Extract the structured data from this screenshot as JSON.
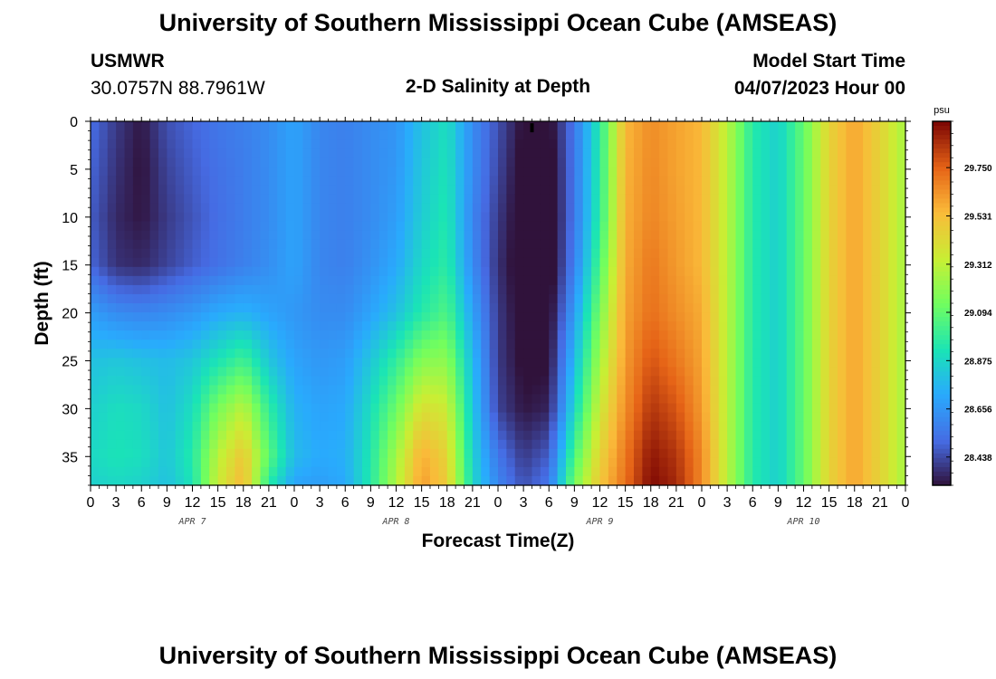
{
  "header": {
    "title": "University of Southern Mississippi Ocean Cube (AMSEAS)",
    "station_id": "USMWR",
    "coords": "30.0757N  88.7961W",
    "plot_title": "2-D Salinity at Depth",
    "start_label": "Model Start Time",
    "start_value": "04/07/2023 Hour 00"
  },
  "footer": {
    "title": "University of Southern Mississippi Ocean Cube (AMSEAS)"
  },
  "chart_data": {
    "type": "heatmap",
    "xlabel": "Forecast Time(Z)",
    "ylabel": "Depth (ft)",
    "x_tick_labels": [
      "0",
      "3",
      "6",
      "9",
      "12",
      "15",
      "18",
      "21",
      "0",
      "3",
      "6",
      "9",
      "12",
      "15",
      "18",
      "21",
      "0",
      "3",
      "6",
      "9",
      "12",
      "15",
      "18",
      "21",
      "0",
      "3",
      "6",
      "9",
      "12",
      "15",
      "18",
      "21",
      "0"
    ],
    "x_range_hours": [
      0,
      96
    ],
    "date_labels": [
      {
        "label": "APR 7",
        "hour": 12
      },
      {
        "label": "APR 8",
        "hour": 36
      },
      {
        "label": "APR 9",
        "hour": 60
      },
      {
        "label": "APR 10",
        "hour": 84
      }
    ],
    "y_ticks": [
      0,
      5,
      10,
      15,
      20,
      25,
      30,
      35
    ],
    "y_range_ft": [
      0,
      38
    ],
    "y_inverted": true,
    "colorbar": {
      "unit": "psu",
      "ticks": [
        "29.750",
        "29.531",
        "29.312",
        "29.094",
        "28.875",
        "28.656",
        "28.438"
      ],
      "range": [
        28.31,
        29.96
      ],
      "colormap": "turbo"
    },
    "marker": {
      "hour": 52,
      "depth_ft": 1
    },
    "sample_grid": {
      "hours": [
        0,
        3,
        6,
        9,
        12,
        15,
        18,
        21,
        24,
        27,
        30,
        33,
        36,
        39,
        42,
        45,
        48,
        51,
        54,
        57,
        60,
        63,
        66,
        69,
        72,
        75,
        78,
        81,
        84,
        87,
        90,
        93,
        96
      ],
      "depths_ft": [
        0,
        5,
        10,
        15,
        20,
        25,
        30,
        35,
        38
      ],
      "values": [
        [
          28.52,
          28.4,
          28.32,
          28.45,
          28.5,
          28.55,
          28.58,
          28.62,
          28.7,
          28.6,
          28.58,
          28.62,
          28.65,
          28.8,
          28.9,
          28.62,
          28.45,
          28.3,
          28.28,
          28.55,
          28.95,
          29.55,
          29.65,
          29.6,
          29.55,
          29.3,
          28.95,
          28.85,
          29.1,
          29.45,
          29.6,
          29.45,
          29.25
        ],
        [
          28.5,
          28.38,
          28.31,
          28.42,
          28.48,
          28.53,
          28.57,
          28.62,
          28.7,
          28.6,
          28.58,
          28.62,
          28.66,
          28.82,
          28.92,
          28.62,
          28.43,
          28.27,
          28.25,
          28.55,
          28.96,
          29.56,
          29.66,
          29.6,
          29.55,
          29.3,
          28.95,
          28.85,
          29.1,
          29.45,
          29.6,
          29.45,
          29.25
        ],
        [
          28.48,
          28.36,
          28.32,
          28.4,
          28.46,
          28.52,
          28.57,
          28.62,
          28.7,
          28.6,
          28.58,
          28.62,
          28.68,
          28.84,
          28.94,
          28.6,
          28.4,
          28.26,
          28.24,
          28.55,
          28.97,
          29.57,
          29.67,
          29.61,
          29.55,
          29.3,
          28.95,
          28.85,
          29.1,
          29.45,
          29.6,
          29.45,
          29.25
        ],
        [
          28.5,
          28.38,
          28.36,
          28.42,
          28.48,
          28.53,
          28.58,
          28.63,
          28.7,
          28.6,
          28.58,
          28.64,
          28.72,
          28.88,
          28.97,
          28.62,
          28.38,
          28.25,
          28.24,
          28.58,
          29.05,
          29.58,
          29.7,
          29.62,
          29.55,
          29.3,
          28.95,
          28.85,
          29.1,
          29.45,
          29.6,
          29.45,
          29.25
        ],
        [
          28.68,
          28.62,
          28.6,
          28.62,
          28.66,
          28.72,
          28.75,
          28.7,
          28.66,
          28.62,
          28.62,
          28.7,
          28.8,
          28.95,
          29.05,
          28.7,
          28.4,
          28.27,
          28.27,
          28.68,
          29.15,
          29.6,
          29.72,
          29.65,
          29.58,
          29.3,
          28.95,
          28.85,
          29.1,
          29.45,
          29.6,
          29.45,
          29.25
        ],
        [
          28.8,
          28.82,
          28.8,
          28.78,
          28.82,
          28.92,
          29.02,
          28.82,
          28.7,
          28.66,
          28.68,
          28.82,
          28.98,
          29.18,
          29.2,
          28.78,
          28.4,
          28.29,
          28.3,
          28.78,
          29.25,
          29.62,
          29.78,
          29.7,
          29.6,
          29.3,
          28.95,
          28.85,
          29.1,
          29.45,
          29.6,
          29.45,
          29.25
        ],
        [
          28.85,
          28.9,
          28.88,
          28.8,
          28.9,
          29.15,
          29.3,
          28.98,
          28.75,
          28.7,
          28.72,
          28.9,
          29.12,
          29.4,
          29.35,
          28.82,
          28.42,
          28.32,
          28.35,
          28.88,
          29.35,
          29.65,
          29.85,
          29.78,
          29.62,
          29.3,
          28.95,
          28.85,
          29.1,
          29.45,
          29.6,
          29.45,
          29.25
        ],
        [
          28.88,
          28.92,
          28.9,
          28.82,
          28.95,
          29.3,
          29.5,
          29.08,
          28.78,
          28.72,
          28.74,
          28.94,
          29.25,
          29.58,
          29.45,
          28.86,
          28.55,
          28.4,
          28.48,
          29.05,
          29.45,
          29.7,
          29.92,
          29.85,
          29.66,
          29.3,
          28.95,
          28.85,
          29.1,
          29.45,
          29.6,
          29.45,
          29.25
        ],
        [
          28.85,
          28.88,
          28.86,
          28.8,
          28.92,
          29.35,
          29.55,
          28.95,
          28.7,
          28.68,
          28.72,
          28.95,
          29.28,
          29.62,
          29.48,
          28.88,
          28.6,
          28.45,
          28.55,
          29.15,
          29.5,
          29.72,
          29.95,
          29.88,
          29.66,
          29.3,
          28.95,
          28.85,
          29.1,
          29.45,
          29.6,
          29.45,
          29.25
        ]
      ]
    }
  }
}
